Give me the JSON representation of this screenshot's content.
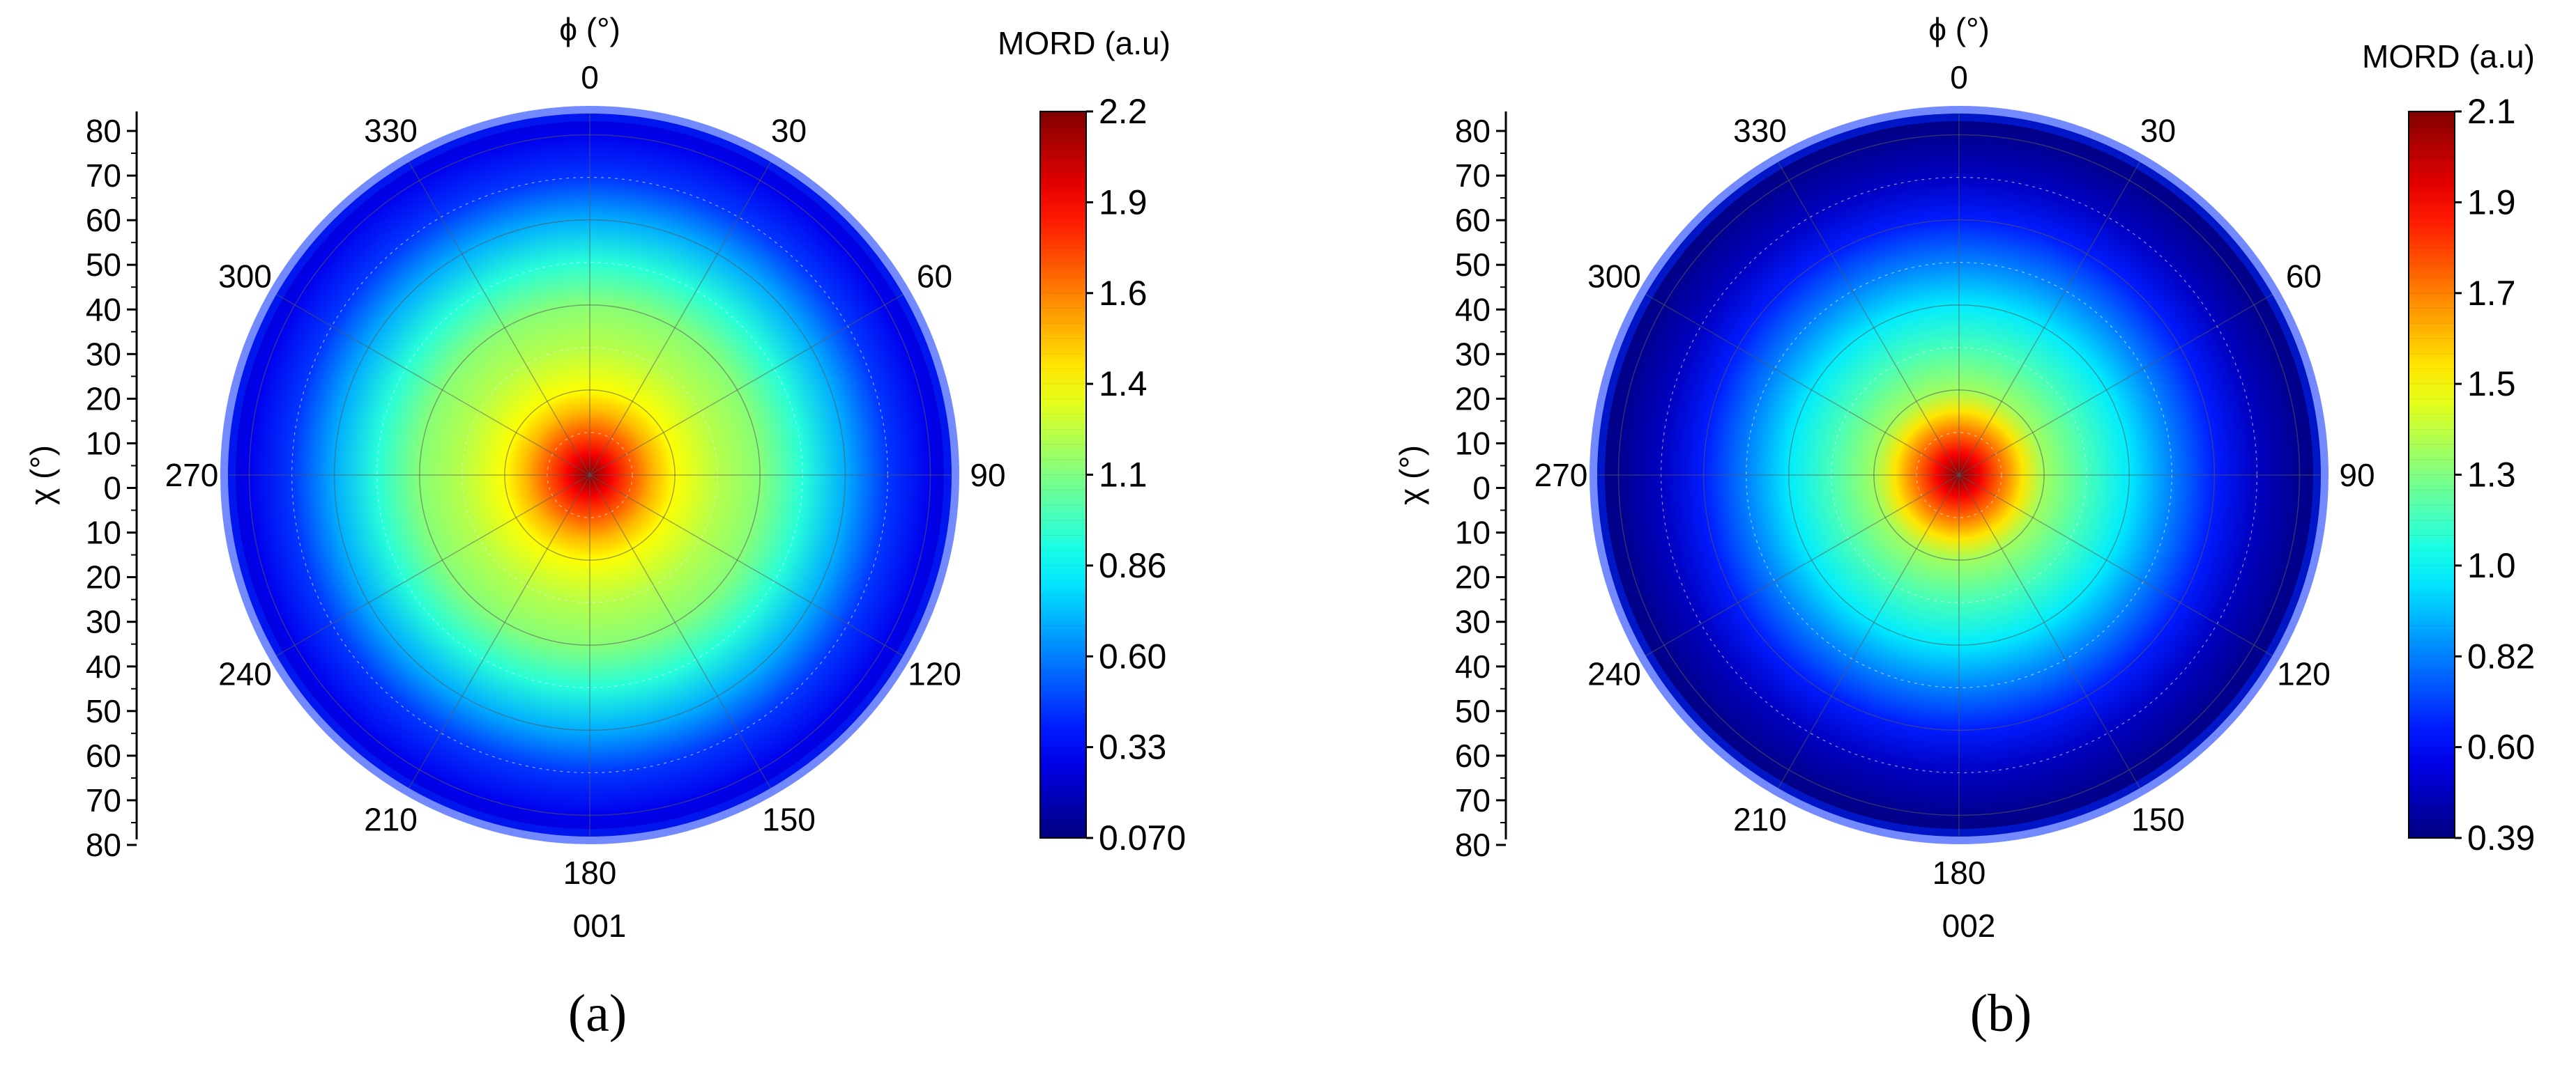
{
  "figure": {
    "panels": [
      {
        "caption": "(a)",
        "reflection": "001",
        "phi_label": "ϕ (°)",
        "chi_label": "χ (°)",
        "colorbar": {
          "title": "MORD (a.u)",
          "ticks": [
            "2.2",
            "1.9",
            "1.6",
            "1.4",
            "1.1",
            "0.86",
            "0.60",
            "0.33",
            "0.070"
          ]
        }
      },
      {
        "caption": "(b)",
        "reflection": "002",
        "phi_label": "ϕ (°)",
        "chi_label": "χ (°)",
        "colorbar": {
          "title": "MORD (a.u)",
          "ticks": [
            "2.1",
            "1.9",
            "1.7",
            "1.5",
            "1.3",
            "1.0",
            "0.82",
            "0.60",
            "0.39"
          ]
        }
      }
    ]
  },
  "chart_data": [
    {
      "type": "heatmap",
      "subtype": "polar-pole-figure",
      "title": "001",
      "caption": "(a)",
      "angular_axis": {
        "label": "ϕ (°)",
        "ticks": [
          0,
          30,
          60,
          90,
          120,
          150,
          180,
          210,
          240,
          270,
          300,
          330
        ],
        "range": [
          0,
          360
        ]
      },
      "radial_axis": {
        "label": "χ (°)",
        "range": [
          0,
          85
        ],
        "tick_labels": [
          "80",
          "70",
          "60",
          "50",
          "40",
          "30",
          "20",
          "10",
          "0",
          "10",
          "20",
          "30",
          "40",
          "50",
          "60",
          "70",
          "80"
        ]
      },
      "colorbar": {
        "label": "MORD (a.u)",
        "min": 0.07,
        "max": 2.2,
        "ticks": [
          2.2,
          1.9,
          1.6,
          1.4,
          1.1,
          0.86,
          0.6,
          0.33,
          0.07
        ]
      },
      "radial_profile": {
        "chi": [
          0,
          5,
          10,
          15,
          20,
          30,
          40,
          50,
          60,
          70,
          80,
          85
        ],
        "mord": [
          2.2,
          1.95,
          1.75,
          1.55,
          1.4,
          1.25,
          1.15,
          0.95,
          0.7,
          0.45,
          0.3,
          0.25
        ]
      }
    },
    {
      "type": "heatmap",
      "subtype": "polar-pole-figure",
      "title": "002",
      "caption": "(b)",
      "angular_axis": {
        "label": "ϕ (°)",
        "ticks": [
          0,
          30,
          60,
          90,
          120,
          150,
          180,
          210,
          240,
          270,
          300,
          330
        ],
        "range": [
          0,
          360
        ]
      },
      "radial_axis": {
        "label": "χ (°)",
        "range": [
          0,
          85
        ],
        "tick_labels": [
          "80",
          "70",
          "60",
          "50",
          "40",
          "30",
          "20",
          "10",
          "0",
          "10",
          "20",
          "30",
          "40",
          "50",
          "60",
          "70",
          "80"
        ]
      },
      "colorbar": {
        "label": "MORD (a.u)",
        "min": 0.39,
        "max": 2.1,
        "ticks": [
          2.1,
          1.9,
          1.7,
          1.5,
          1.3,
          1.0,
          0.82,
          0.6,
          0.39
        ]
      },
      "radial_profile": {
        "chi": [
          0,
          5,
          10,
          15,
          20,
          30,
          40,
          50,
          60,
          70,
          80,
          85
        ],
        "mord": [
          2.1,
          1.9,
          1.7,
          1.5,
          1.3,
          1.15,
          1.0,
          0.82,
          0.65,
          0.5,
          0.42,
          0.39
        ]
      }
    }
  ]
}
